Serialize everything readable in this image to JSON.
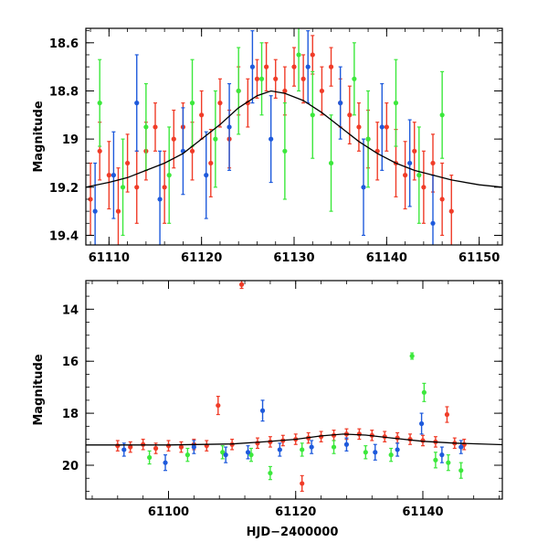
{
  "figure": {
    "xlabel_text": "HJD−2400000"
  },
  "chart_data": [
    {
      "type": "scatter",
      "panel": "top",
      "title": "",
      "xlabel": "",
      "ylabel": "Magnitude",
      "xlim": [
        61107.5,
        61152.5
      ],
      "ylim": [
        19.44,
        18.54
      ],
      "y_inverted": true,
      "x_ticks": [
        61110,
        61120,
        61130,
        61140,
        61150
      ],
      "y_ticks": [
        18.6,
        18.8,
        19,
        19.2,
        19.4
      ],
      "x_tick_labels": [
        "61110",
        "61120",
        "61130",
        "61140",
        "61150"
      ],
      "y_tick_labels": [
        "18.6",
        "18.8",
        "19",
        "19.2",
        "19.4"
      ],
      "model_curve": {
        "name": "model",
        "color": "#000000",
        "x": [
          61107.5,
          61110,
          61112,
          61114,
          61116,
          61118,
          61120,
          61122,
          61124,
          61126,
          61127.5,
          61129,
          61131,
          61133,
          61135,
          61137,
          61139,
          61141,
          61143,
          61145,
          61147,
          61150,
          61152.5
        ],
        "y": [
          19.2,
          19.18,
          19.16,
          19.13,
          19.1,
          19.06,
          19.0,
          18.94,
          18.87,
          18.82,
          18.8,
          18.81,
          18.84,
          18.89,
          18.95,
          19.01,
          19.06,
          19.1,
          19.13,
          19.15,
          19.17,
          19.19,
          19.2
        ]
      },
      "series": [
        {
          "name": "red",
          "color": "#f03c28",
          "x": [
            61108,
            61109,
            61110,
            61111,
            61112,
            61113,
            61114,
            61115,
            61116,
            61117,
            61118,
            61119,
            61120,
            61121,
            61122,
            61123,
            61124,
            61125,
            61126,
            61127,
            61128,
            61129,
            61130,
            61131,
            61132,
            61133,
            61134,
            61135,
            61136,
            61137,
            61138,
            61139,
            61140,
            61141,
            61142,
            61143,
            61144,
            61145,
            61146,
            61147
          ],
          "y": [
            19.25,
            19.05,
            19.15,
            19.3,
            19.1,
            19.2,
            19.05,
            18.95,
            19.2,
            19.0,
            18.95,
            19.05,
            18.9,
            19.1,
            18.85,
            19.0,
            18.8,
            18.85,
            18.75,
            18.7,
            18.75,
            18.8,
            18.7,
            18.75,
            18.65,
            18.8,
            18.7,
            18.85,
            18.9,
            18.95,
            19.0,
            19.05,
            18.95,
            19.1,
            19.15,
            19.05,
            19.2,
            19.1,
            19.25,
            19.3
          ],
          "err": [
            0.15,
            0.12,
            0.14,
            0.18,
            0.12,
            0.15,
            0.12,
            0.1,
            0.15,
            0.12,
            0.1,
            0.12,
            0.1,
            0.14,
            0.1,
            0.12,
            0.1,
            0.1,
            0.08,
            0.1,
            0.08,
            0.1,
            0.08,
            0.1,
            0.08,
            0.1,
            0.08,
            0.1,
            0.12,
            0.1,
            0.12,
            0.12,
            0.1,
            0.14,
            0.14,
            0.12,
            0.15,
            0.12,
            0.15,
            0.15
          ]
        },
        {
          "name": "green",
          "color": "#3ce83c",
          "x": [
            61109,
            61111.5,
            61114,
            61116.5,
            61119,
            61121.5,
            61124,
            61126.5,
            61129,
            61130.5,
            61132,
            61134,
            61136.5,
            61138,
            61141,
            61143.5,
            61146
          ],
          "y": [
            18.85,
            19.2,
            18.95,
            19.15,
            18.85,
            19.0,
            18.8,
            18.75,
            19.05,
            18.65,
            18.9,
            19.1,
            18.75,
            19.0,
            18.85,
            19.15,
            18.9
          ],
          "err": [
            0.18,
            0.2,
            0.18,
            0.2,
            0.18,
            0.2,
            0.18,
            0.15,
            0.2,
            0.15,
            0.18,
            0.2,
            0.15,
            0.2,
            0.18,
            0.2,
            0.18
          ]
        },
        {
          "name": "blue",
          "color": "#1e5adc",
          "x": [
            61108.5,
            61110.5,
            61113,
            61115.5,
            61118,
            61120.5,
            61123,
            61125.5,
            61127.5,
            61131.5,
            61135,
            61137.5,
            61139.5,
            61142.5,
            61145
          ],
          "y": [
            19.3,
            19.15,
            18.85,
            19.25,
            19.05,
            19.15,
            18.95,
            18.7,
            19.0,
            18.7,
            18.85,
            19.2,
            18.95,
            19.1,
            19.35
          ],
          "err": [
            0.2,
            0.18,
            0.2,
            0.2,
            0.18,
            0.18,
            0.18,
            0.15,
            0.18,
            0.15,
            0.15,
            0.2,
            0.18,
            0.18,
            0.2
          ]
        }
      ]
    },
    {
      "type": "scatter",
      "panel": "bottom",
      "title": "",
      "xlabel": "HJD−2400000",
      "ylabel": "Magnitude",
      "xlim": [
        61087,
        61152.5
      ],
      "ylim": [
        21.3,
        12.9
      ],
      "y_inverted": true,
      "x_ticks": [
        61100,
        61120,
        61140
      ],
      "y_ticks": [
        14,
        16,
        18,
        20
      ],
      "x_tick_labels": [
        "61100",
        "61120",
        "61140"
      ],
      "y_tick_labels": [
        "14",
        "16",
        "18",
        "20"
      ],
      "model_curve": {
        "name": "model",
        "color": "#000000",
        "x": [
          61087,
          61100,
          61110,
          61115,
          61120,
          61124,
          61127.5,
          61131,
          61135,
          61140,
          61145,
          61152.5
        ],
        "y": [
          19.22,
          19.22,
          19.18,
          19.1,
          19.0,
          18.87,
          18.8,
          18.84,
          18.95,
          19.08,
          19.15,
          19.21
        ]
      },
      "series": [
        {
          "name": "red",
          "color": "#f03c28",
          "x": [
            61092,
            61094,
            61096,
            61098,
            61100,
            61102,
            61104,
            61106,
            61107.8,
            61110,
            61111.5,
            61114,
            61116,
            61118,
            61120,
            61121,
            61122,
            61124,
            61126,
            61128,
            61130,
            61132,
            61134,
            61136,
            61138,
            61140,
            61142,
            61143.8,
            61145,
            61146.5
          ],
          "y": [
            19.25,
            19.3,
            19.2,
            19.35,
            19.25,
            19.3,
            19.2,
            19.25,
            17.7,
            19.2,
            13.05,
            19.15,
            19.1,
            19.05,
            19.0,
            20.7,
            18.95,
            18.9,
            18.85,
            18.8,
            18.8,
            18.85,
            18.9,
            18.95,
            19.0,
            19.05,
            19.1,
            18.05,
            19.15,
            19.2
          ],
          "err": [
            0.2,
            0.2,
            0.2,
            0.2,
            0.2,
            0.2,
            0.2,
            0.2,
            0.35,
            0.2,
            0.15,
            0.2,
            0.2,
            0.2,
            0.2,
            0.3,
            0.2,
            0.2,
            0.2,
            0.2,
            0.2,
            0.2,
            0.2,
            0.2,
            0.2,
            0.2,
            0.2,
            0.3,
            0.2,
            0.2
          ]
        },
        {
          "name": "green",
          "color": "#3ce83c",
          "x": [
            61097,
            61103,
            61108.5,
            61113,
            61116,
            61121,
            61126,
            61131,
            61135,
            61138.3,
            61140.2,
            61142,
            61144,
            61146
          ],
          "y": [
            19.7,
            19.6,
            19.5,
            19.6,
            20.3,
            19.4,
            19.3,
            19.5,
            19.6,
            15.8,
            17.2,
            19.8,
            19.9,
            20.2
          ],
          "err": [
            0.25,
            0.25,
            0.25,
            0.25,
            0.25,
            0.25,
            0.25,
            0.25,
            0.25,
            0.12,
            0.35,
            0.3,
            0.3,
            0.3
          ]
        },
        {
          "name": "blue",
          "color": "#1e5adc",
          "x": [
            61093,
            61099.5,
            61104,
            61109,
            61112.5,
            61114.8,
            61117.5,
            61122.5,
            61128,
            61132.5,
            61136,
            61139.8,
            61143,
            61146
          ],
          "y": [
            19.4,
            19.9,
            19.3,
            19.6,
            19.5,
            17.9,
            19.4,
            19.3,
            19.2,
            19.5,
            19.4,
            18.4,
            19.6,
            19.3
          ],
          "err": [
            0.25,
            0.3,
            0.25,
            0.3,
            0.25,
            0.4,
            0.25,
            0.25,
            0.25,
            0.3,
            0.25,
            0.4,
            0.3,
            0.25
          ]
        }
      ]
    }
  ]
}
